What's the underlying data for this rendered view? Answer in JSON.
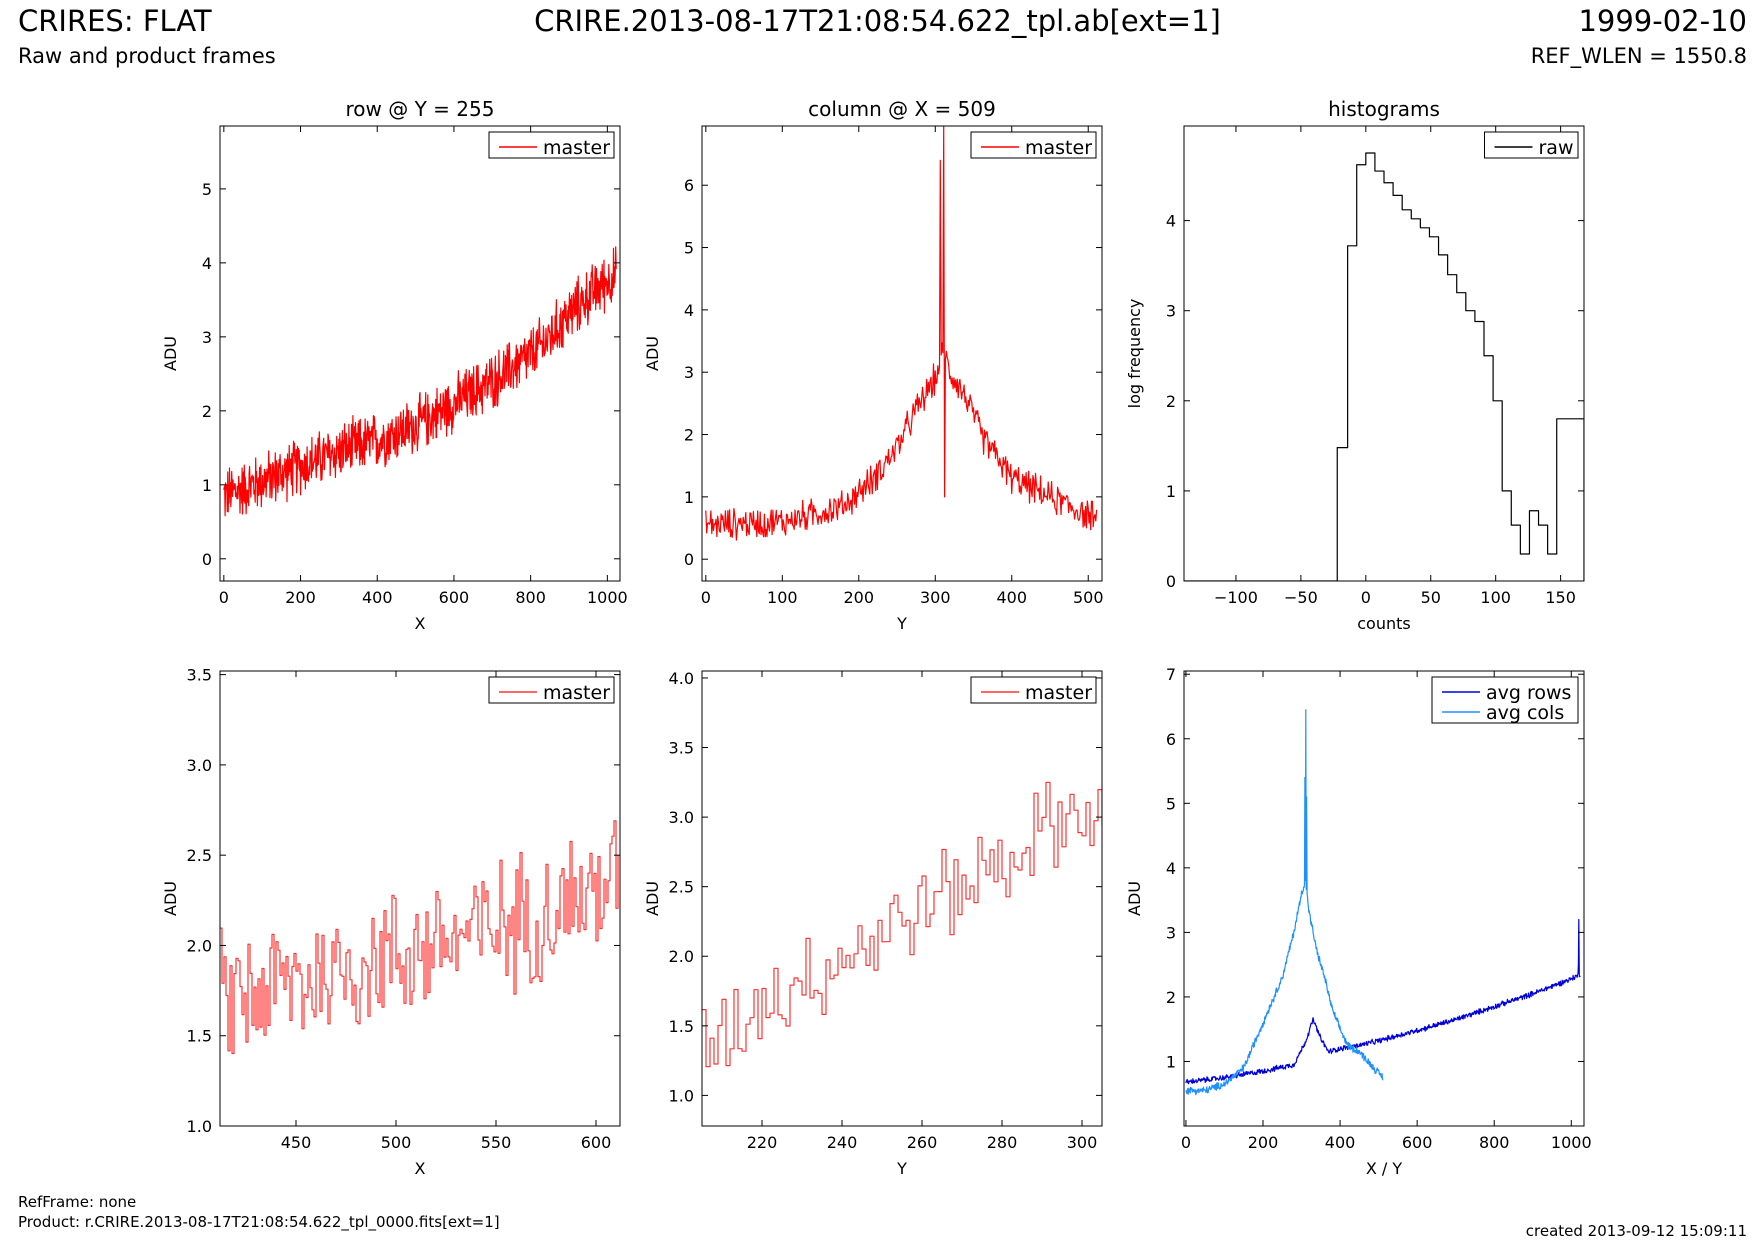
{
  "header": {
    "title": "CRIRES: FLAT",
    "subtitle": "Raw and product frames",
    "filename": "CRIRE.2013-08-17T21:08:54.622_tpl.ab[ext=1]",
    "date": "1999-02-10",
    "ref_wlen": "REF_WLEN = 1550.8"
  },
  "footer": {
    "refframe": "RefFrame: none",
    "product": "Product: r.CRIRE.2013-08-17T21:08:54.622_tpl_0000.fits[ext=1]",
    "created": "created 2013-09-12 15:09:11"
  },
  "colors": {
    "master": "#ff0000",
    "master_zoom": "#ff3333",
    "raw": "#000000",
    "avg_rows": "#0000dd",
    "avg_cols": "#1e90ff"
  },
  "chart_data": [
    {
      "type": "line",
      "title": "row @ Y = 255",
      "xlabel": "X",
      "ylabel": "ADU",
      "xlim": [
        -10,
        1033
      ],
      "ylim": [
        -0.3,
        5.85
      ],
      "xticks": [
        0,
        200,
        400,
        600,
        800,
        1000
      ],
      "yticks": [
        0,
        1,
        2,
        3,
        4,
        5
      ],
      "legend": "top-right",
      "series": [
        {
          "name": "master",
          "color": "#ff0000",
          "x": [
            0,
            100,
            200,
            300,
            400,
            500,
            600,
            700,
            800,
            850,
            900,
            950,
            1023
          ],
          "y": [
            0.85,
            1.05,
            1.25,
            1.45,
            1.6,
            1.8,
            2.1,
            2.4,
            2.75,
            3.0,
            3.3,
            3.55,
            3.85
          ],
          "noise": 0.45
        }
      ]
    },
    {
      "type": "line",
      "title": "column @ X = 509",
      "xlabel": "Y",
      "ylabel": "ADU",
      "xlim": [
        -5,
        518
      ],
      "ylim": [
        -0.35,
        6.95
      ],
      "xticks": [
        0,
        100,
        200,
        300,
        400,
        500
      ],
      "yticks": [
        0,
        1,
        2,
        3,
        4,
        5,
        6
      ],
      "legend": "top-right",
      "series": [
        {
          "name": "master",
          "color": "#ff0000",
          "x": [
            0,
            100,
            180,
            220,
            250,
            280,
            300,
            310,
            320,
            340,
            360,
            400,
            450,
            511
          ],
          "y": [
            0.55,
            0.6,
            0.85,
            1.3,
            1.8,
            2.5,
            2.9,
            3.3,
            3.0,
            2.6,
            2.0,
            1.3,
            1.0,
            0.65
          ],
          "noise": 0.3,
          "spikes": [
            {
              "x": 307,
              "y": 6.4
            },
            {
              "x": 311,
              "y": 6.95
            },
            {
              "x": 312,
              "y": 1.0
            }
          ]
        }
      ]
    },
    {
      "type": "step",
      "title": "histograms",
      "xlabel": "counts",
      "ylabel": "log frequency",
      "xlim": [
        -140,
        168
      ],
      "ylim": [
        0,
        5.05
      ],
      "xticks": [
        -100,
        -50,
        0,
        50,
        100,
        150
      ],
      "yticks": [
        0,
        1,
        2,
        3,
        4
      ],
      "legend": "top-right",
      "series": [
        {
          "name": "raw",
          "color": "#000000",
          "bins": [
            -140,
            -22,
            -14,
            -7,
            0,
            7,
            14,
            21,
            28,
            35,
            42,
            49,
            56,
            63,
            70,
            77,
            84,
            91,
            98,
            105,
            112,
            119,
            126,
            133,
            140,
            147,
            154,
            161,
            168
          ],
          "counts": [
            0,
            1.48,
            3.72,
            4.62,
            4.75,
            4.55,
            4.42,
            4.28,
            4.12,
            4.02,
            3.92,
            3.82,
            3.62,
            3.4,
            3.2,
            3.0,
            2.88,
            2.5,
            2.0,
            1.0,
            0.62,
            0.3,
            0.78,
            0.62,
            0.3,
            1.8,
            1.8,
            1.8
          ]
        }
      ]
    },
    {
      "type": "line",
      "title": "",
      "xlabel": "X",
      "ylabel": "ADU",
      "xlim": [
        412,
        612
      ],
      "ylim": [
        1.0,
        3.52
      ],
      "xticks": [
        450,
        500,
        550,
        600
      ],
      "yticks": [
        1.0,
        1.5,
        2.0,
        2.5,
        3.0,
        3.5
      ],
      "yfmt": 1,
      "legend": "top-right",
      "series": [
        {
          "name": "master",
          "color": "#ff3333",
          "x": [
            412,
            450,
            500,
            550,
            600,
            611
          ],
          "y": [
            1.7,
            1.8,
            1.95,
            2.1,
            2.3,
            2.4
          ],
          "noise": 0.45,
          "step": true
        }
      ]
    },
    {
      "type": "line",
      "title": "",
      "xlabel": "Y",
      "ylabel": "ADU",
      "xlim": [
        205,
        305
      ],
      "ylim": [
        0.78,
        4.05
      ],
      "xticks": [
        220,
        240,
        260,
        280,
        300
      ],
      "yticks": [
        1.0,
        1.5,
        2.0,
        2.5,
        3.0,
        3.5,
        4.0
      ],
      "yfmt": 1,
      "legend": "top-right",
      "series": [
        {
          "name": "master",
          "color": "#ff3333",
          "x": [
            205,
            220,
            240,
            260,
            280,
            295,
            305
          ],
          "y": [
            1.35,
            1.7,
            2.0,
            2.35,
            2.7,
            3.0,
            3.05
          ],
          "noise": 0.4,
          "step": true
        }
      ]
    },
    {
      "type": "line",
      "title": "",
      "xlabel": "X / Y",
      "ylabel": "ADU",
      "xlim": [
        -5,
        1033
      ],
      "ylim": [
        0,
        7.05
      ],
      "xticks": [
        0,
        200,
        400,
        600,
        800,
        1000
      ],
      "yticks": [
        1,
        2,
        3,
        4,
        5,
        6,
        7
      ],
      "legend": "top-right",
      "series": [
        {
          "name": "avg rows",
          "color": "#0000dd",
          "x": [
            0,
            100,
            200,
            280,
            310,
            330,
            350,
            370,
            400,
            450,
            500,
            600,
            700,
            800,
            900,
            1000,
            1023
          ],
          "y": [
            0.68,
            0.75,
            0.85,
            0.95,
            1.3,
            1.65,
            1.35,
            1.15,
            1.2,
            1.25,
            1.32,
            1.48,
            1.65,
            1.85,
            2.05,
            2.28,
            2.35
          ],
          "noise": 0.05,
          "spikes": [
            {
              "x": 1020,
              "y": 3.2
            },
            {
              "x": 1018,
              "y": 2.5
            }
          ]
        },
        {
          "name": "avg cols",
          "color": "#1e90ff",
          "x": [
            0,
            50,
            100,
            150,
            200,
            250,
            280,
            300,
            310,
            320,
            340,
            360,
            380,
            400,
            420,
            450,
            480,
            511
          ],
          "y": [
            0.55,
            0.55,
            0.65,
            0.9,
            1.6,
            2.3,
            3.0,
            3.6,
            3.8,
            3.3,
            2.7,
            2.3,
            1.8,
            1.5,
            1.25,
            1.15,
            0.95,
            0.75
          ],
          "noise": 0.07,
          "spikes": [
            {
              "x": 311,
              "y": 6.45
            },
            {
              "x": 309,
              "y": 5.4
            },
            {
              "x": 313,
              "y": 5.1
            }
          ]
        }
      ]
    }
  ]
}
